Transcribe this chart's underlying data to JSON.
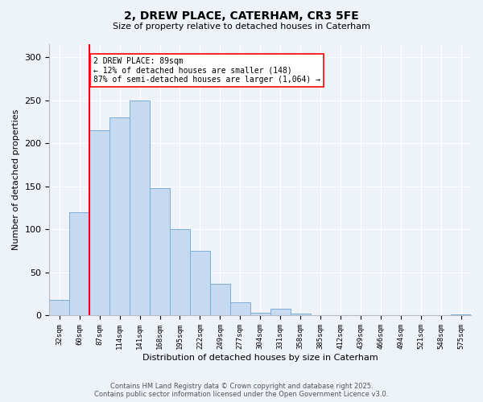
{
  "title": "2, DREW PLACE, CATERHAM, CR3 5FE",
  "subtitle": "Size of property relative to detached houses in Caterham",
  "xlabel": "Distribution of detached houses by size in Caterham",
  "ylabel": "Number of detached properties",
  "footer_line1": "Contains HM Land Registry data © Crown copyright and database right 2025.",
  "footer_line2": "Contains public sector information licensed under the Open Government Licence v3.0.",
  "bins": [
    "32sqm",
    "60sqm",
    "87sqm",
    "114sqm",
    "141sqm",
    "168sqm",
    "195sqm",
    "222sqm",
    "249sqm",
    "277sqm",
    "304sqm",
    "331sqm",
    "358sqm",
    "385sqm",
    "412sqm",
    "439sqm",
    "466sqm",
    "494sqm",
    "521sqm",
    "548sqm",
    "575sqm"
  ],
  "values": [
    18,
    120,
    215,
    230,
    250,
    148,
    100,
    75,
    37,
    15,
    3,
    8,
    2,
    0,
    0,
    0,
    0,
    0,
    0,
    0,
    1
  ],
  "bar_color": "#c5d9f0",
  "bar_edge_color": "#7bafd4",
  "vline_x": 2,
  "vline_color": "red",
  "annotation_text": "2 DREW PLACE: 89sqm\n← 12% of detached houses are smaller (148)\n87% of semi-detached houses are larger (1,064) →",
  "annotation_box_color": "white",
  "annotation_box_edge": "red",
  "ylim": [
    0,
    315
  ],
  "yticks": [
    0,
    50,
    100,
    150,
    200,
    250,
    300
  ],
  "background_color": "#eef2f9",
  "grid_color": "white"
}
